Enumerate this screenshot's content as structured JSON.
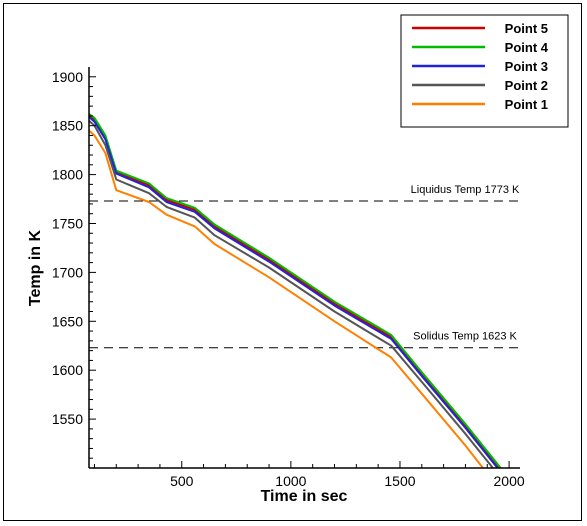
{
  "chart_data": {
    "type": "line",
    "title": "",
    "xlabel": "Time in sec",
    "ylabel": "Temp in K",
    "xlim": [
      75,
      2050
    ],
    "ylim": [
      1500,
      1910
    ],
    "xticks": [
      500,
      1000,
      1500,
      2000
    ],
    "yticks": [
      1550,
      1600,
      1650,
      1700,
      1750,
      1800,
      1850,
      1900
    ],
    "grid": false,
    "legend_position": "top-right",
    "reference_lines": [
      {
        "label": "Liquidus Temp 1773 K",
        "y": 1773
      },
      {
        "label": "Solidus Temp 1623 K",
        "y": 1623
      }
    ],
    "series": [
      {
        "name": "Point 5",
        "color": "#cc0000",
        "x": [
          75,
          100,
          150,
          200,
          350,
          430,
          560,
          650,
          900,
          1200,
          1460,
          1600,
          1800,
          1990
        ],
        "y": [
          1860,
          1856,
          1838,
          1803,
          1789,
          1774,
          1764,
          1747,
          1713,
          1668,
          1634,
          1596,
          1543,
          1490
        ]
      },
      {
        "name": "Point 4",
        "color": "#00bb00",
        "x": [
          75,
          100,
          150,
          200,
          350,
          430,
          560,
          650,
          900,
          1200,
          1460,
          1600,
          1800,
          1990
        ],
        "y": [
          1862,
          1858,
          1840,
          1804,
          1791,
          1776,
          1766,
          1749,
          1715,
          1670,
          1636,
          1598,
          1545,
          1492
        ]
      },
      {
        "name": "Point 3",
        "color": "#2222dd",
        "x": [
          75,
          100,
          150,
          200,
          350,
          430,
          560,
          650,
          900,
          1200,
          1460,
          1600,
          1800,
          1990
        ],
        "y": [
          1859,
          1854,
          1836,
          1801,
          1787,
          1772,
          1762,
          1745,
          1711,
          1666,
          1632,
          1594,
          1541,
          1488
        ]
      },
      {
        "name": "Point 2",
        "color": "#555555",
        "x": [
          75,
          100,
          150,
          200,
          350,
          430,
          560,
          650,
          900,
          1200,
          1460,
          1600,
          1800,
          1980
        ],
        "y": [
          1855,
          1850,
          1830,
          1795,
          1781,
          1767,
          1756,
          1738,
          1705,
          1660,
          1625,
          1588,
          1535,
          1485
        ]
      },
      {
        "name": "Point 1",
        "color": "#ff8000",
        "x": [
          75,
          100,
          150,
          200,
          350,
          430,
          560,
          650,
          900,
          1200,
          1460,
          1600,
          1800,
          1950
        ],
        "y": [
          1845,
          1840,
          1822,
          1784,
          1772,
          1759,
          1747,
          1729,
          1695,
          1650,
          1613,
          1576,
          1523,
          1480
        ]
      }
    ]
  }
}
